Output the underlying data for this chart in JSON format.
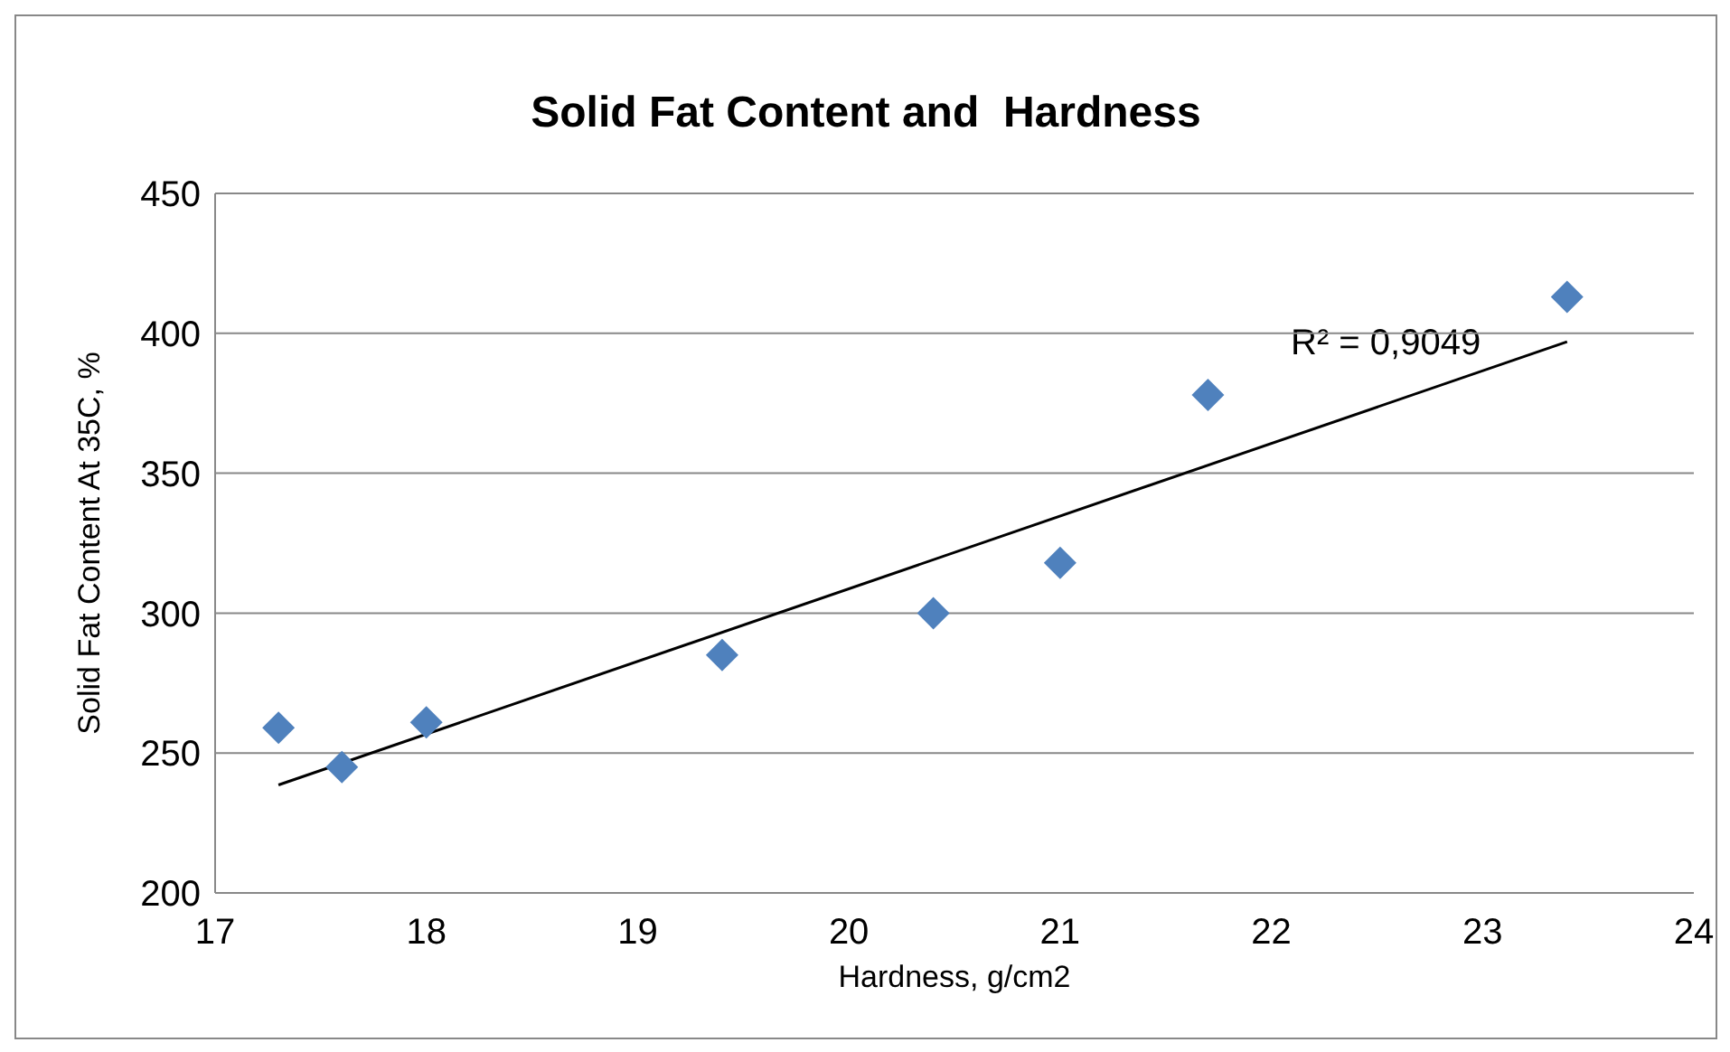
{
  "chart_data": {
    "type": "scatter",
    "title": "Solid Fat Content and  Hardness",
    "xlabel": "Hardness, g/cm2",
    "ylabel": "Solid Fat Content At 35C, %",
    "x": [
      17.3,
      17.6,
      18.0,
      19.4,
      20.4,
      21.0,
      21.7,
      23.4
    ],
    "series": [
      {
        "color": "#4f81bd",
        "marker": "diamond",
        "values": [
          259,
          245,
          261,
          285,
          300,
          318,
          378,
          413
        ]
      },
      {
        "type": "line",
        "color": "#000000",
        "marker": "none",
        "x": [
          17.3,
          23.4
        ],
        "values": [
          238.6,
          397
        ]
      }
    ],
    "annotations": [
      "R² = 0,9049"
    ],
    "xlim": [
      17,
      24
    ],
    "xticks": [
      17,
      18,
      19,
      20,
      21,
      22,
      23,
      24
    ],
    "ylim": [
      200,
      450
    ],
    "yticks": [
      200,
      250,
      300,
      350,
      400,
      450
    ],
    "grid": "y",
    "legend": false
  }
}
